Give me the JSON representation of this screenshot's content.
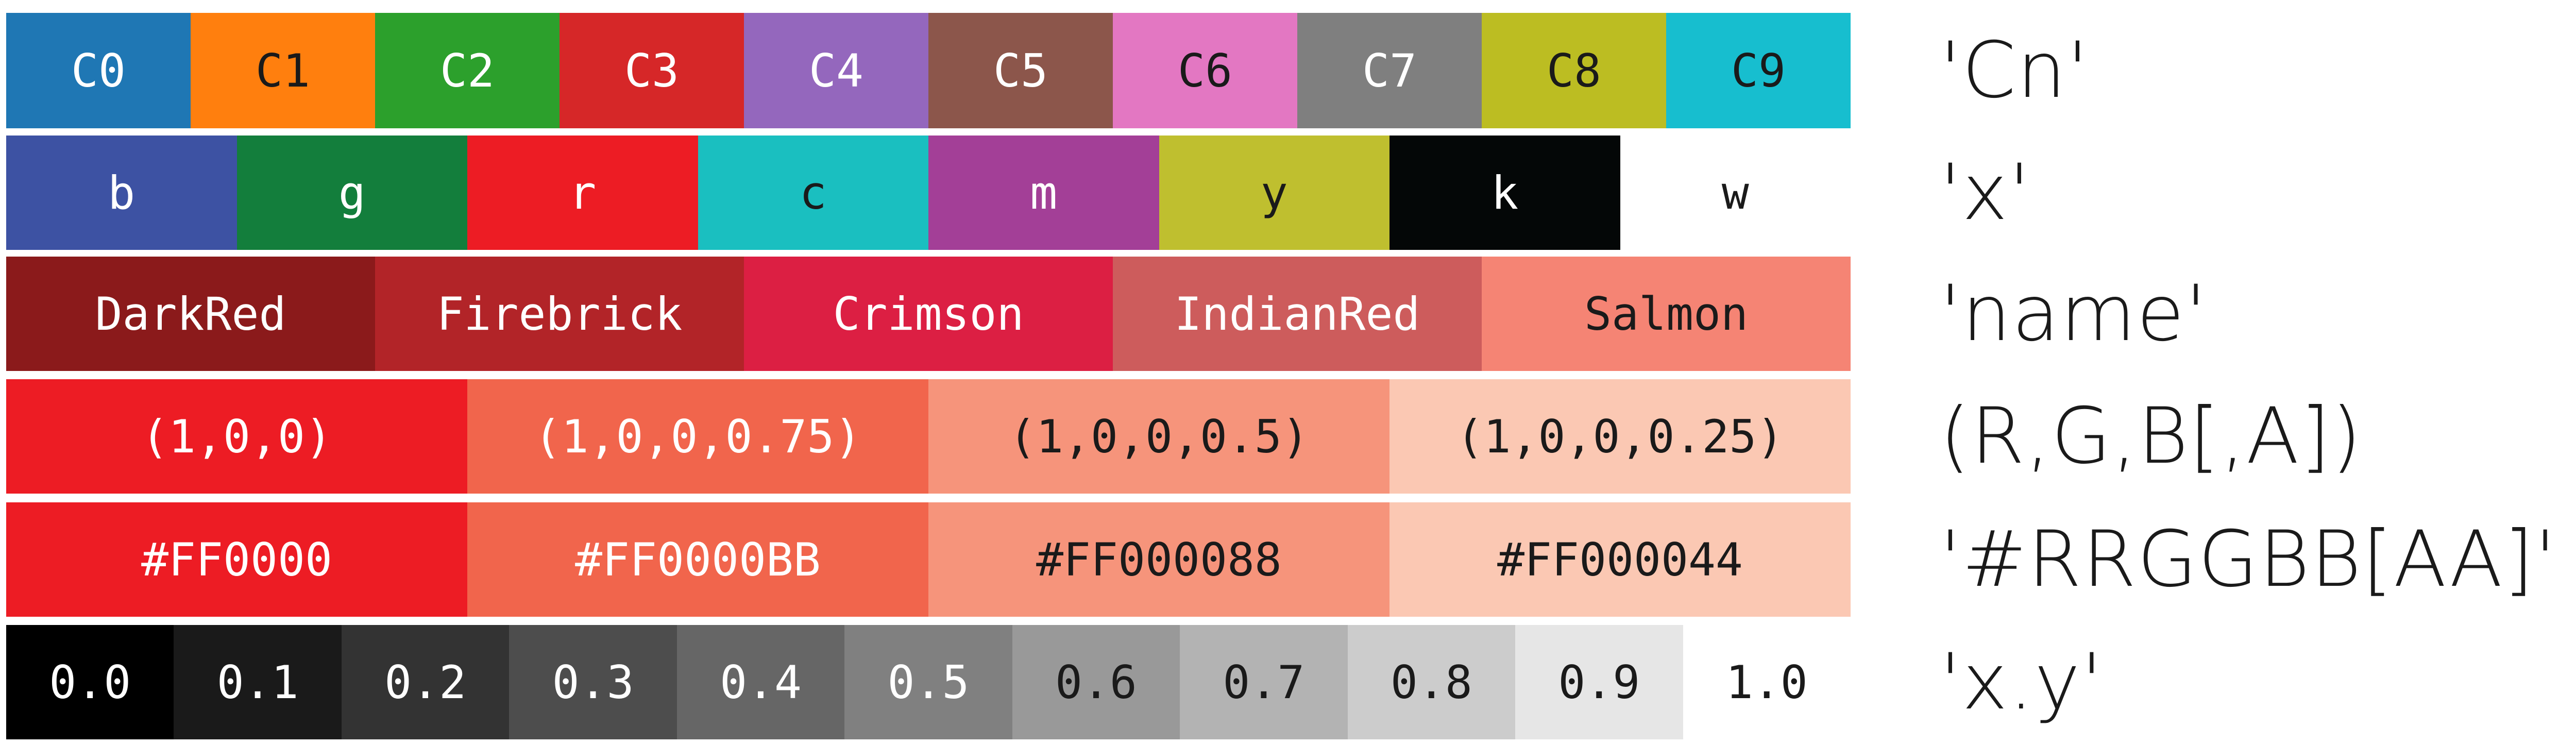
{
  "rows": [
    {
      "label": "'Cn'",
      "cells": [
        {
          "text": "C0",
          "color": "#1f77b4",
          "dark": true
        },
        {
          "text": "C1",
          "color": "#ff7f0e",
          "dark": false
        },
        {
          "text": "C2",
          "color": "#2ca02c",
          "dark": true
        },
        {
          "text": "C3",
          "color": "#d62728",
          "dark": true
        },
        {
          "text": "C4",
          "color": "#9467bd",
          "dark": true
        },
        {
          "text": "C5",
          "color": "#8c564b",
          "dark": true
        },
        {
          "text": "C6",
          "color": "#e377c2",
          "dark": false
        },
        {
          "text": "C7",
          "color": "#7f7f7f",
          "dark": true
        },
        {
          "text": "C8",
          "color": "#bcbd22",
          "dark": false
        },
        {
          "text": "C9",
          "color": "#17becf",
          "dark": false
        }
      ]
    },
    {
      "label": "'x'",
      "cells": [
        {
          "text": "b",
          "color": "#3d52a3",
          "dark": true
        },
        {
          "text": "g",
          "color": "#137e3c",
          "dark": true
        },
        {
          "text": "r",
          "color": "#ed1c24",
          "dark": true
        },
        {
          "text": "c",
          "color": "#1abfc0",
          "dark": false
        },
        {
          "text": "m",
          "color": "#a33f97",
          "dark": true
        },
        {
          "text": "y",
          "color": "#bfbf2f",
          "dark": false
        },
        {
          "text": "k",
          "color": "#040707",
          "dark": true
        },
        {
          "text": "w",
          "color": "#ffffff",
          "dark": false
        }
      ]
    },
    {
      "label": "'name'",
      "cells": [
        {
          "text": "DarkRed",
          "color": "#8b1a1b",
          "dark": true
        },
        {
          "text": "Firebrick",
          "color": "#b22428",
          "dark": true
        },
        {
          "text": "Crimson",
          "color": "#dc1f43",
          "dark": true
        },
        {
          "text": "IndianRed",
          "color": "#cd5c5c",
          "dark": true
        },
        {
          "text": "Salmon",
          "color": "#f58474",
          "dark": false
        }
      ]
    },
    {
      "label": "(R,G,B[,A])",
      "cells": [
        {
          "text": "(1,0,0)",
          "color": "#ed1c24",
          "dark": true
        },
        {
          "text": "(1,0,0,0.75)",
          "color": "#f1654c",
          "dark": true
        },
        {
          "text": "(1,0,0,0.5)",
          "color": "#f6947b",
          "dark": false
        },
        {
          "text": "(1,0,0,0.25)",
          "color": "#fbc8b3",
          "dark": false
        }
      ]
    },
    {
      "label": "'#RRGGBB[AA]'",
      "cells": [
        {
          "text": "#FF0000",
          "color": "#ed1c24",
          "dark": true
        },
        {
          "text": "#FF0000BB",
          "color": "#f1654c",
          "dark": true
        },
        {
          "text": "#FF000088",
          "color": "#f6947b",
          "dark": false
        },
        {
          "text": "#FF000044",
          "color": "#fbc8b3",
          "dark": false
        }
      ]
    },
    {
      "label": "'x.y'",
      "cells": [
        {
          "text": "0.0",
          "color": "#000000",
          "dark": true
        },
        {
          "text": "0.1",
          "color": "#1a1a1a",
          "dark": true
        },
        {
          "text": "0.2",
          "color": "#333333",
          "dark": true
        },
        {
          "text": "0.3",
          "color": "#4d4d4d",
          "dark": true
        },
        {
          "text": "0.4",
          "color": "#666666",
          "dark": true
        },
        {
          "text": "0.5",
          "color": "#808080",
          "dark": true
        },
        {
          "text": "0.6",
          "color": "#999999",
          "dark": false
        },
        {
          "text": "0.7",
          "color": "#b3b3b3",
          "dark": false
        },
        {
          "text": "0.8",
          "color": "#cccccc",
          "dark": false
        },
        {
          "text": "0.9",
          "color": "#e6e6e6",
          "dark": false
        },
        {
          "text": "1.0",
          "color": "#ffffff",
          "dark": false
        }
      ]
    }
  ]
}
